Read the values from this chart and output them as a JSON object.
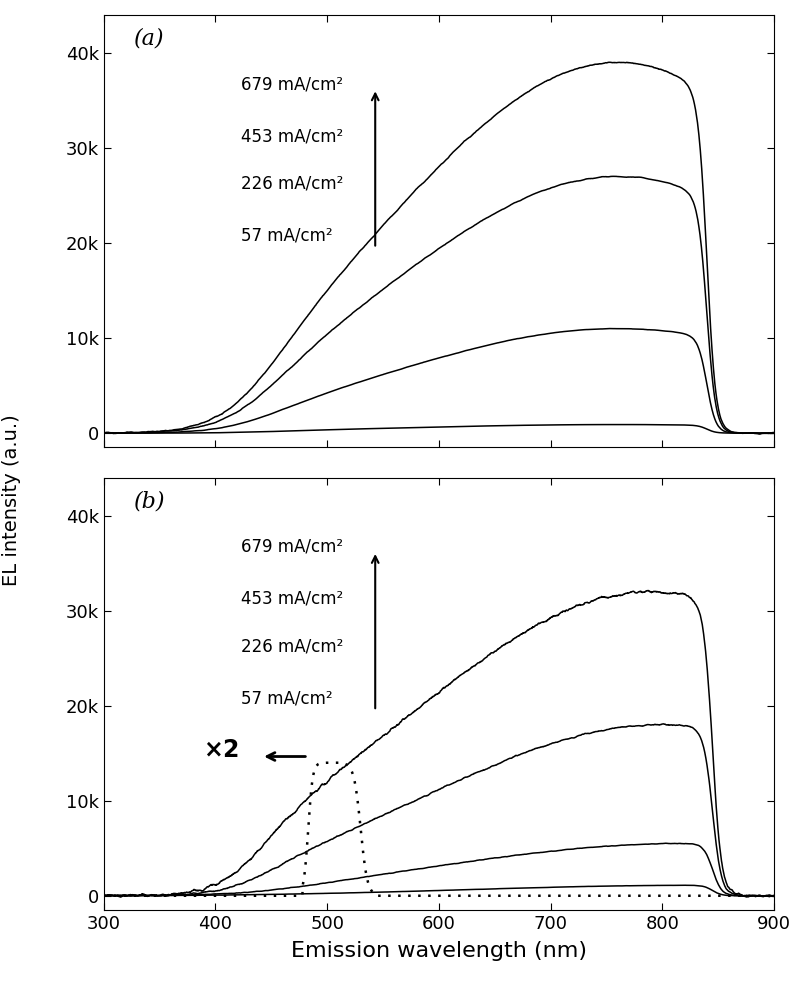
{
  "title_a": "(a)",
  "title_b": "(b)",
  "xlabel": "Emission wavelength (nm)",
  "ylabel": "EL intensity (a.u.)",
  "xlim": [
    300,
    900
  ],
  "ylim_a": [
    -1500,
    44000
  ],
  "ylim_b": [
    -1500,
    44000
  ],
  "yticks": [
    0,
    10000,
    20000,
    30000,
    40000
  ],
  "ytick_labels": [
    "0",
    "10k",
    "20k",
    "30k",
    "40k"
  ],
  "xticks": [
    300,
    400,
    500,
    600,
    700,
    800,
    900
  ],
  "labels": [
    "679 mA/cm²",
    "453 mA/cm²",
    "226 mA/cm²",
    "57 mA/cm²"
  ],
  "line_color": "#000000",
  "background_color": "#ffffff",
  "figsize": [
    7.98,
    10.0
  ],
  "dpi": 100
}
